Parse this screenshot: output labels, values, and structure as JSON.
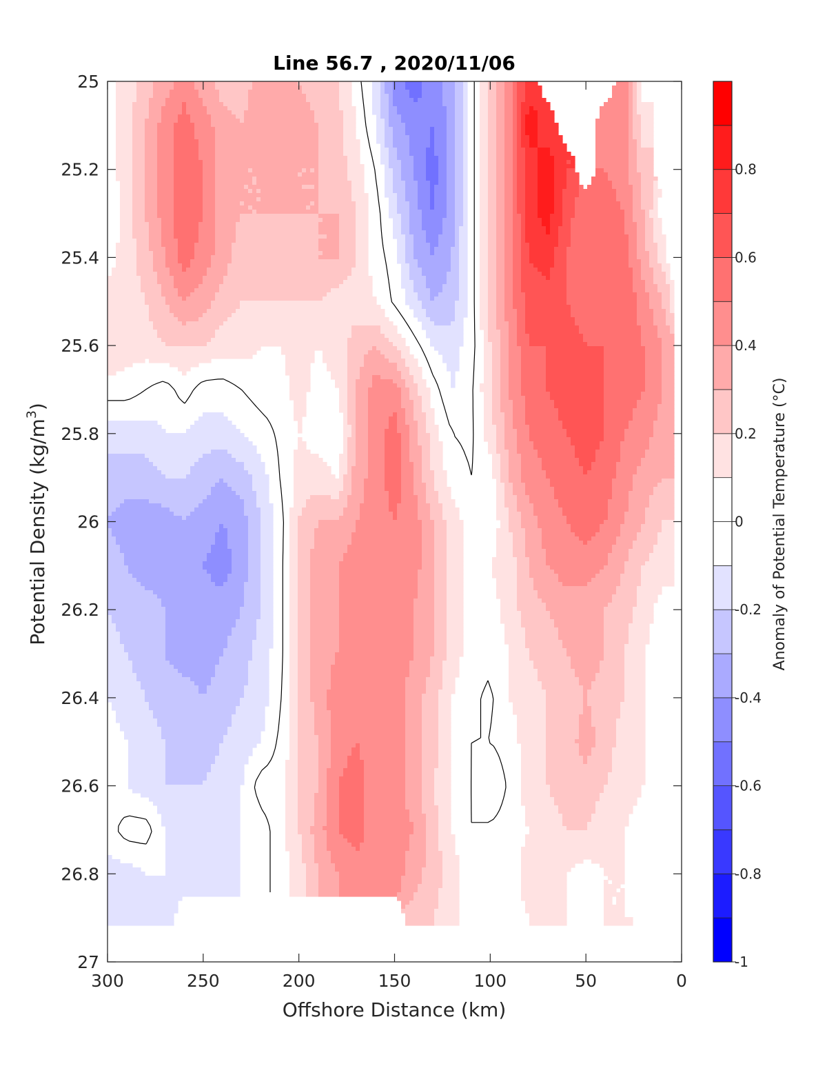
{
  "chart_data": {
    "type": "heatmap",
    "subtype": "filled-contour",
    "title": "Line 56.7 , 2020/11/06",
    "xlabel": "Offshore Distance (km)",
    "ylabel_main": "Potential Density (kg/m",
    "ylabel_sup": "3",
    "ylabel_close": ")",
    "colorbar_label": "Anomaly of Potential Temperature (°C)",
    "xlim": [
      300,
      0
    ],
    "ylim": [
      25,
      27
    ],
    "x_reversed": true,
    "y_reversed": true,
    "x_ticks": [
      300,
      250,
      200,
      150,
      100,
      50,
      0
    ],
    "x_tick_labels": [
      "300",
      "250",
      "200",
      "150",
      "100",
      "50",
      "0"
    ],
    "y_ticks": [
      25,
      25.2,
      25.4,
      25.6,
      25.8,
      26,
      26.2,
      26.4,
      26.6,
      26.8,
      27
    ],
    "y_tick_labels": [
      "25",
      "25.2",
      "25.4",
      "25.6",
      "25.8",
      "26",
      "26.2",
      "26.4",
      "26.6",
      "26.8",
      "27"
    ],
    "colorbar": {
      "range": [
        -1,
        1
      ],
      "levels": [
        -1,
        -0.9,
        -0.8,
        -0.7,
        -0.6,
        -0.5,
        -0.4,
        -0.3,
        -0.2,
        -0.1,
        0,
        0.1,
        0.2,
        0.3,
        0.4,
        0.5,
        0.6,
        0.7,
        0.8,
        0.9,
        1
      ],
      "tick_values": [
        -1,
        -0.8,
        -0.6,
        -0.4,
        -0.2,
        0,
        0.2,
        0.4,
        0.6,
        0.8
      ],
      "tick_labels": [
        "-1",
        "-0.8",
        "-0.6",
        "-0.4",
        "-0.2",
        "0",
        "0.2",
        "0.4",
        "0.6",
        "0.8"
      ],
      "colors": [
        "#0000ff",
        "#1c1cff",
        "#3939ff",
        "#5555ff",
        "#7171ff",
        "#8e8eff",
        "#aaaaff",
        "#c6c6ff",
        "#e2e2ff",
        "#ffffff",
        "#ffffff",
        "#ffe2e2",
        "#ffc6c6",
        "#ffaaaa",
        "#ff8e8e",
        "#ff7171",
        "#ff5555",
        "#ff3939",
        "#ff1c1c",
        "#ff0000"
      ]
    },
    "zero_contour_color": "#000000",
    "x": [
      300,
      290,
      280,
      270,
      260,
      250,
      240,
      230,
      220,
      210,
      200,
      190,
      180,
      170,
      160,
      150,
      140,
      130,
      120,
      110,
      100,
      90,
      80,
      70,
      60,
      50,
      40,
      30,
      20,
      10,
      5
    ],
    "y": [
      25.0,
      25.1,
      25.2,
      25.3,
      25.4,
      25.5,
      25.6,
      25.7,
      25.8,
      25.9,
      26.0,
      26.1,
      26.2,
      26.3,
      26.4,
      26.5,
      26.6,
      26.7,
      26.8,
      26.9
    ],
    "z": [
      [
        0.05,
        0.15,
        0.25,
        0.35,
        0.45,
        0.35,
        0.25,
        0.25,
        0.35,
        0.35,
        0.3,
        0.25,
        0.2,
        0.05,
        -0.15,
        -0.45,
        -0.55,
        -0.45,
        -0.35,
        -0.05,
        0.25,
        0.45,
        0.75,
        null,
        null,
        null,
        null,
        0.45,
        0.05,
        null,
        null
      ],
      [
        0.05,
        0.15,
        0.3,
        0.45,
        0.55,
        0.45,
        0.35,
        0.3,
        0.35,
        0.4,
        0.35,
        0.3,
        0.25,
        0.1,
        -0.1,
        -0.35,
        -0.45,
        -0.5,
        -0.35,
        -0.05,
        0.25,
        0.45,
        0.85,
        0.75,
        null,
        null,
        0.45,
        0.45,
        0.15,
        null,
        null
      ],
      [
        0.05,
        0.15,
        0.3,
        0.45,
        0.58,
        0.5,
        0.35,
        0.3,
        0.3,
        0.35,
        0.3,
        0.3,
        0.25,
        0.15,
        0.0,
        -0.25,
        -0.4,
        -0.55,
        -0.35,
        -0.05,
        0.25,
        0.45,
        0.75,
        0.85,
        0.7,
        null,
        0.5,
        0.45,
        0.25,
        null,
        null
      ],
      [
        0.02,
        0.15,
        0.3,
        0.45,
        0.58,
        0.5,
        0.35,
        0.3,
        0.3,
        0.3,
        0.3,
        0.3,
        0.3,
        0.2,
        0.05,
        -0.15,
        -0.35,
        -0.5,
        -0.35,
        -0.05,
        0.25,
        0.45,
        0.75,
        0.85,
        0.65,
        0.5,
        0.55,
        0.5,
        0.3,
        0.05,
        null
      ],
      [
        0.05,
        0.15,
        0.25,
        0.4,
        0.55,
        0.45,
        0.35,
        0.25,
        0.25,
        0.25,
        0.25,
        0.3,
        0.3,
        0.2,
        0.05,
        -0.05,
        -0.3,
        -0.4,
        -0.3,
        -0.05,
        0.25,
        0.45,
        0.7,
        0.75,
        0.6,
        0.5,
        0.6,
        0.55,
        0.35,
        0.15,
        null
      ],
      [
        0.15,
        0.15,
        0.2,
        0.3,
        0.4,
        0.35,
        0.25,
        0.2,
        0.2,
        0.2,
        0.2,
        0.2,
        0.15,
        0.15,
        0.1,
        -0.02,
        -0.15,
        -0.3,
        -0.25,
        -0.05,
        0.25,
        0.45,
        0.65,
        0.65,
        0.6,
        0.55,
        0.6,
        0.6,
        0.45,
        0.3,
        0.15
      ],
      [
        0.2,
        0.15,
        0.15,
        0.2,
        0.2,
        0.2,
        0.15,
        0.15,
        0.1,
        0.1,
        0.15,
        0.1,
        0.15,
        0.25,
        0.3,
        0.2,
        0.05,
        -0.1,
        -0.15,
        -0.05,
        0.2,
        0.4,
        0.6,
        0.6,
        0.65,
        0.6,
        0.6,
        0.55,
        0.5,
        0.4,
        0.35
      ],
      [
        0.05,
        0.05,
        0.0,
        -0.05,
        0.05,
        -0.05,
        -0.05,
        0.0,
        0.05,
        0.05,
        0.15,
        0.05,
        0.1,
        0.3,
        0.45,
        0.45,
        0.25,
        0.05,
        -0.1,
        -0.02,
        0.2,
        0.4,
        0.55,
        0.6,
        0.65,
        0.65,
        0.6,
        0.55,
        0.5,
        0.4,
        0.35
      ],
      [
        -0.15,
        -0.15,
        -0.15,
        -0.1,
        -0.1,
        -0.15,
        -0.15,
        -0.1,
        -0.05,
        0.02,
        0.1,
        0.05,
        0.0,
        0.3,
        0.45,
        0.55,
        0.35,
        0.15,
        0.0,
        -0.02,
        0.15,
        0.35,
        0.5,
        0.55,
        0.6,
        0.65,
        0.6,
        0.5,
        0.45,
        0.35,
        0.35
      ],
      [
        -0.25,
        -0.25,
        -0.25,
        -0.2,
        -0.2,
        -0.25,
        -0.3,
        -0.25,
        -0.15,
        0.0,
        0.15,
        0.15,
        0.1,
        0.35,
        0.45,
        0.55,
        0.4,
        0.2,
        0.05,
        0.0,
        0.05,
        0.3,
        0.45,
        0.5,
        0.55,
        0.6,
        0.55,
        0.45,
        0.35,
        0.3,
        0.3
      ],
      [
        -0.3,
        -0.35,
        -0.35,
        -0.35,
        -0.3,
        -0.35,
        -0.4,
        -0.35,
        -0.2,
        -0.05,
        0.2,
        0.3,
        0.3,
        0.4,
        0.45,
        0.5,
        0.45,
        0.3,
        0.15,
        0.05,
        0.02,
        0.2,
        0.35,
        0.45,
        0.5,
        0.55,
        0.5,
        0.4,
        0.3,
        0.2,
        0.2
      ],
      [
        -0.25,
        -0.3,
        -0.35,
        -0.35,
        -0.35,
        -0.4,
        -0.45,
        -0.35,
        -0.2,
        -0.05,
        0.25,
        0.35,
        0.4,
        0.45,
        0.45,
        0.45,
        0.45,
        0.3,
        0.15,
        0.05,
        0.1,
        0.15,
        0.3,
        0.4,
        0.45,
        0.45,
        0.4,
        0.3,
        0.2,
        0.15,
        0.15
      ],
      [
        -0.2,
        -0.25,
        -0.25,
        -0.3,
        -0.35,
        -0.35,
        -0.35,
        -0.3,
        -0.2,
        -0.05,
        0.25,
        0.35,
        0.4,
        0.45,
        0.45,
        0.45,
        0.4,
        0.3,
        0.15,
        0.05,
        0.05,
        0.15,
        0.25,
        0.3,
        0.35,
        0.35,
        0.3,
        0.25,
        0.15,
        0.05,
        0.05
      ],
      [
        -0.15,
        -0.2,
        -0.25,
        -0.3,
        -0.35,
        -0.35,
        -0.3,
        -0.25,
        -0.15,
        -0.05,
        0.25,
        0.35,
        0.4,
        0.45,
        0.45,
        0.45,
        0.4,
        0.3,
        0.15,
        0.05,
        0.02,
        0.1,
        0.2,
        0.25,
        0.3,
        0.35,
        0.3,
        0.2,
        0.1,
        0.05,
        0.05
      ],
      [
        -0.1,
        -0.15,
        -0.2,
        -0.25,
        -0.25,
        -0.3,
        -0.25,
        -0.2,
        -0.15,
        -0.02,
        0.2,
        0.35,
        0.45,
        0.45,
        0.45,
        0.45,
        0.35,
        0.25,
        0.1,
        0.02,
        -0.02,
        0.1,
        0.15,
        0.2,
        0.25,
        0.3,
        0.25,
        0.2,
        0.1,
        0.05,
        0.05
      ],
      [
        -0.05,
        -0.1,
        -0.15,
        -0.2,
        -0.25,
        -0.25,
        -0.2,
        -0.15,
        -0.1,
        0.02,
        0.2,
        0.3,
        0.45,
        0.5,
        0.45,
        0.45,
        0.35,
        0.25,
        0.1,
        0.0,
        0.0,
        0.05,
        0.15,
        0.2,
        0.25,
        0.35,
        0.25,
        0.15,
        0.1,
        0.05,
        0.05
      ],
      [
        -0.05,
        -0.1,
        -0.15,
        -0.2,
        -0.2,
        -0.2,
        -0.15,
        -0.1,
        0.05,
        0.05,
        0.2,
        0.3,
        0.5,
        0.55,
        0.45,
        0.45,
        0.35,
        0.2,
        0.1,
        0.0,
        -0.1,
        0.02,
        0.15,
        0.2,
        0.25,
        0.25,
        0.2,
        0.15,
        0.1,
        0.05,
        0.05
      ],
      [
        -0.05,
        0.05,
        0.05,
        -0.1,
        -0.15,
        -0.15,
        -0.1,
        -0.1,
        -0.05,
        0.05,
        0.2,
        0.35,
        0.5,
        0.55,
        0.45,
        0.45,
        0.4,
        0.25,
        0.1,
        0.0,
        0.02,
        0.05,
        0.1,
        0.15,
        0.2,
        0.2,
        0.15,
        0.1,
        0.05,
        0.05,
        0.05
      ],
      [
        -0.15,
        -0.15,
        -0.1,
        -0.1,
        -0.15,
        -0.15,
        -0.15,
        -0.1,
        -0.05,
        0.05,
        0.15,
        0.3,
        0.4,
        0.45,
        0.45,
        0.45,
        0.35,
        0.25,
        0.15,
        0.02,
        0.02,
        0.05,
        0.15,
        0.15,
        0.1,
        0.05,
        0.1,
        0.1,
        0.05,
        0.05,
        0.05
      ],
      [
        -0.2,
        -0.2,
        -0.2,
        -0.2,
        null,
        null,
        null,
        null,
        null,
        null,
        null,
        null,
        null,
        null,
        null,
        null,
        0.25,
        0.2,
        0.15,
        0.02,
        0.02,
        0.05,
        0.1,
        0.15,
        0.1,
        0.05,
        0.1,
        0.1,
        null,
        null,
        null
      ]
    ]
  }
}
